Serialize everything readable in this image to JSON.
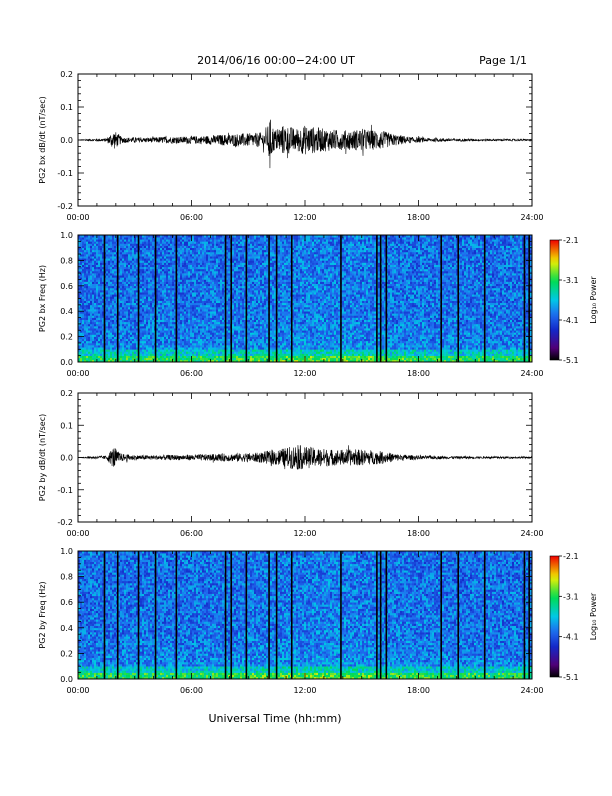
{
  "header": {
    "title": "2014/06/16  00:00−24:00 UT",
    "page_label": "Page 1/1"
  },
  "footer": {
    "xlabel": "Universal Time (hh:mm)"
  },
  "chart_data": [
    {
      "type": "line",
      "ylabel": "PG2 bx dB/dt (nT/sec)",
      "xlabel": "",
      "xlim": [
        0,
        24
      ],
      "xticks": [
        "00:00",
        "06:00",
        "12:00",
        "18:00",
        "24:00"
      ],
      "ylim": [
        -0.2,
        0.2
      ],
      "yticks": [
        "0.2",
        "0.1",
        "0.0",
        "-0.1",
        "-0.2"
      ],
      "series": [
        {
          "x": [
            0,
            0.5,
            1,
            1.5,
            1.9,
            2.1,
            2.3,
            2.6,
            3,
            3.5,
            4,
            4.5,
            5,
            5.5,
            6,
            6.5,
            7,
            7.5,
            8,
            8.5,
            9,
            9.5,
            10,
            10.1,
            10.2,
            10.4,
            10.6,
            10.8,
            11,
            11.5,
            12,
            12.5,
            13,
            13.5,
            14,
            14.5,
            15,
            15.5,
            16,
            16.5,
            17,
            17.5,
            18,
            18.5,
            19,
            19.5,
            20,
            20.5,
            21,
            21.5,
            22,
            22.5,
            23,
            23.5,
            24
          ],
          "values": [
            0.0,
            0.003,
            0.004,
            0.005,
            0.03,
            0.02,
            0.01,
            0.008,
            0.008,
            0.007,
            0.008,
            0.01,
            0.01,
            0.01,
            0.012,
            0.012,
            0.014,
            0.016,
            0.018,
            0.02,
            0.02,
            0.022,
            0.025,
            0.075,
            0.06,
            0.03,
            0.04,
            0.045,
            0.045,
            0.035,
            0.045,
            0.04,
            0.035,
            0.032,
            0.03,
            0.03,
            0.035,
            0.03,
            0.03,
            0.02,
            0.015,
            0.01,
            0.008,
            0.006,
            0.005,
            0.005,
            0.004,
            0.004,
            0.003,
            0.003,
            0.003,
            0.003,
            0.003,
            0.003,
            0.002
          ]
        }
      ]
    },
    {
      "type": "heatmap",
      "ylabel": "PG2 bx Freq (Hz)",
      "xlabel": "",
      "xlim": [
        0,
        24
      ],
      "xticks": [
        "00:00",
        "06:00",
        "12:00",
        "18:00",
        "24:00"
      ],
      "ylim": [
        0,
        1.0
      ],
      "yticks": [
        "1.0",
        "0.8",
        "0.6",
        "0.4",
        "0.2",
        "0.0"
      ],
      "colorbar": {
        "label": "Log₁₀ Power",
        "ticks": [
          "-2.1",
          "-3.1",
          "-4.1",
          "-5.1"
        ],
        "range": [
          -5.1,
          -2.1
        ]
      },
      "dark_vertical_lines_hours": [
        1.4,
        2.1,
        3.2,
        4.1,
        5.2,
        7.8,
        8.1,
        8.9,
        10.1,
        10.5,
        11.3,
        13.9,
        15.8,
        16.0,
        16.3,
        19.2,
        20.1,
        21.5,
        23.6,
        23.85
      ]
    },
    {
      "type": "line",
      "ylabel": "PG2 by dB/dt (nT/sec)",
      "xlabel": "",
      "xlim": [
        0,
        24
      ],
      "xticks": [
        "00:00",
        "06:00",
        "12:00",
        "18:00",
        "24:00"
      ],
      "ylim": [
        -0.2,
        0.2
      ],
      "yticks": [
        "0.2",
        "0.1",
        "0.0",
        "-0.1",
        "-0.2"
      ],
      "series": [
        {
          "x": [
            0,
            0.5,
            1,
            1.5,
            1.9,
            2.1,
            2.3,
            2.6,
            3,
            3.5,
            4,
            4.5,
            5,
            5.5,
            6,
            6.5,
            7,
            7.5,
            8,
            8.5,
            9,
            9.5,
            10,
            10.5,
            11,
            11.5,
            12,
            12.5,
            13,
            13.5,
            14,
            14.5,
            15,
            15.5,
            16,
            16.5,
            17,
            17.5,
            18,
            18.5,
            19,
            19.5,
            20,
            20.5,
            21,
            21.5,
            22,
            22.5,
            23,
            23.5,
            24
          ],
          "values": [
            0.0,
            0.003,
            0.004,
            0.006,
            0.035,
            0.02,
            0.012,
            0.01,
            0.008,
            0.007,
            0.007,
            0.008,
            0.008,
            0.008,
            0.009,
            0.01,
            0.01,
            0.012,
            0.012,
            0.013,
            0.014,
            0.015,
            0.02,
            0.025,
            0.03,
            0.04,
            0.035,
            0.03,
            0.028,
            0.025,
            0.025,
            0.025,
            0.025,
            0.022,
            0.02,
            0.015,
            0.01,
            0.008,
            0.006,
            0.005,
            0.005,
            0.004,
            0.004,
            0.004,
            0.003,
            0.003,
            0.003,
            0.003,
            0.003,
            0.003,
            0.002
          ]
        }
      ]
    },
    {
      "type": "heatmap",
      "ylabel": "PG2 by Freq (Hz)",
      "xlabel": "",
      "xlim": [
        0,
        24
      ],
      "xticks": [
        "00:00",
        "06:00",
        "12:00",
        "18:00",
        "24:00"
      ],
      "ylim": [
        0,
        1.0
      ],
      "yticks": [
        "1.0",
        "0.8",
        "0.6",
        "0.4",
        "0.2",
        "0.0"
      ],
      "colorbar": {
        "label": "Log₁₀ Power",
        "ticks": [
          "-2.1",
          "-3.1",
          "-4.1",
          "-5.1"
        ],
        "range": [
          -5.1,
          -2.1
        ]
      },
      "dark_vertical_lines_hours": [
        1.4,
        2.1,
        3.2,
        4.1,
        5.2,
        7.8,
        8.1,
        8.9,
        10.1,
        10.5,
        11.3,
        13.9,
        15.8,
        16.0,
        16.3,
        19.2,
        20.1,
        21.5,
        23.6,
        23.85
      ]
    }
  ]
}
